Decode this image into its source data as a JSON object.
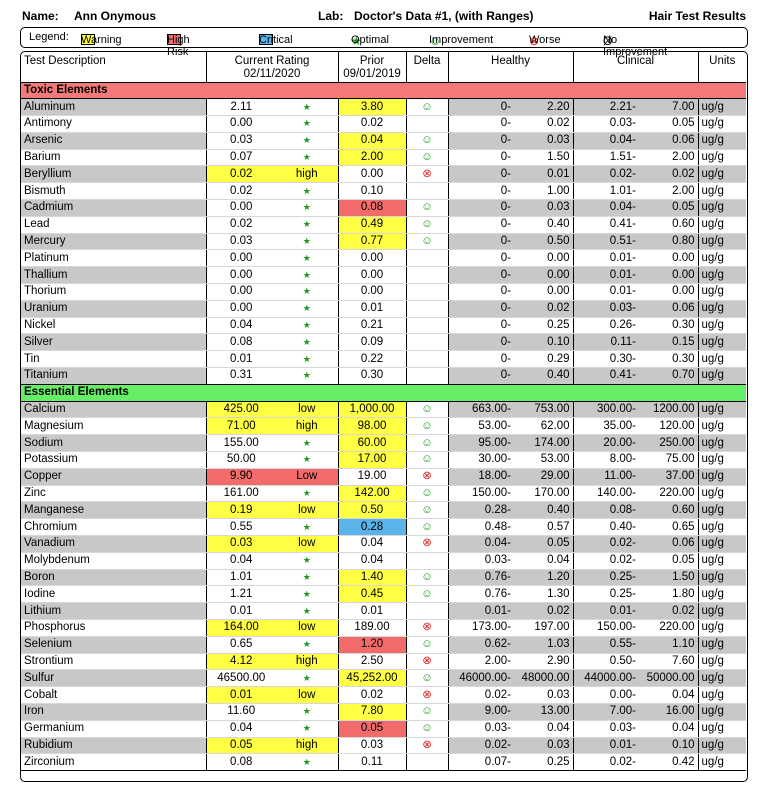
{
  "header": {
    "name_label": "Name:",
    "name": "Ann Onymous",
    "lab_label": "Lab:",
    "lab": "Doctor's Data #1, (with Ranges)",
    "title": "Hair Test Results"
  },
  "legend": {
    "label": "Legend:",
    "items": [
      {
        "label": "Warning",
        "swatch": "#ffff44"
      },
      {
        "label": "High Risk",
        "swatch": "#f26b6b"
      },
      {
        "label": "Critical",
        "swatch": "#5ab4ea"
      },
      {
        "label": "Optimal",
        "symbol": "★",
        "color": "#1a9a1a"
      },
      {
        "label": "Improvement",
        "symbol": "☺",
        "color": "#1a9a1a"
      },
      {
        "label": "Worse",
        "symbol": "⊗",
        "color": "#e02020"
      },
      {
        "label": "No Improvement",
        "symbol": "Ø",
        "color": "#000000"
      }
    ]
  },
  "table": {
    "columns": {
      "description": "Test Description",
      "current": "Current Rating",
      "current_date": "02/11/2020",
      "prior": "Prior",
      "prior_date": "09/01/2019",
      "delta": "Delta",
      "healthy": "Healthy",
      "clinical": "Clinical",
      "units": "Units"
    },
    "sections": [
      {
        "title": "Toxic Elements",
        "color": "#f47a7a",
        "rows": [
          [
            "Aluminum",
            "2.11",
            "★",
            null,
            "3.80",
            "#ffff44",
            "☺",
            "0-",
            "2.20",
            "2.21-",
            "7.00",
            "ug/g"
          ],
          [
            "Antimony",
            "0.00",
            "★",
            null,
            "0.02",
            null,
            null,
            "0-",
            "0.02",
            "0.03-",
            "0.05",
            "ug/g"
          ],
          [
            "Arsenic",
            "0.03",
            "★",
            null,
            "0.04",
            "#ffff44",
            "☺",
            "0-",
            "0.03",
            "0.04-",
            "0.06",
            "ug/g"
          ],
          [
            "Barium",
            "0.07",
            "★",
            null,
            "2.00",
            "#ffff44",
            "☺",
            "0-",
            "1.50",
            "1.51-",
            "2.00",
            "ug/g"
          ],
          [
            "Beryllium",
            "0.02",
            "high",
            "#ffff44",
            "0.00",
            null,
            "⊗",
            "0-",
            "0.01",
            "0.02-",
            "0.02",
            "ug/g"
          ],
          [
            "Bismuth",
            "0.02",
            "★",
            null,
            "0.10",
            null,
            null,
            "0-",
            "1.00",
            "1.01-",
            "2.00",
            "ug/g"
          ],
          [
            "Cadmium",
            "0.00",
            "★",
            null,
            "0.08",
            "#f26b6b",
            "☺",
            "0-",
            "0.03",
            "0.04-",
            "0.05",
            "ug/g"
          ],
          [
            "Lead",
            "0.02",
            "★",
            null,
            "0.49",
            "#ffff44",
            "☺",
            "0-",
            "0.40",
            "0.41-",
            "0.60",
            "ug/g"
          ],
          [
            "Mercury",
            "0.03",
            "★",
            null,
            "0.77",
            "#ffff44",
            "☺",
            "0-",
            "0.50",
            "0.51-",
            "0.80",
            "ug/g"
          ],
          [
            "Platinum",
            "0.00",
            "★",
            null,
            "0.00",
            null,
            null,
            "0-",
            "0.00",
            "0.01-",
            "0.00",
            "ug/g"
          ],
          [
            "Thallium",
            "0.00",
            "★",
            null,
            "0.00",
            null,
            null,
            "0-",
            "0.00",
            "0.01-",
            "0.00",
            "ug/g"
          ],
          [
            "Thorium",
            "0.00",
            "★",
            null,
            "0.00",
            null,
            null,
            "0-",
            "0.00",
            "0.01-",
            "0.00",
            "ug/g"
          ],
          [
            "Uranium",
            "0.00",
            "★",
            null,
            "0.01",
            null,
            null,
            "0-",
            "0.02",
            "0.03-",
            "0.06",
            "ug/g"
          ],
          [
            "Nickel",
            "0.04",
            "★",
            null,
            "0.21",
            null,
            null,
            "0-",
            "0.25",
            "0.26-",
            "0.30",
            "ug/g"
          ],
          [
            "Silver",
            "0.08",
            "★",
            null,
            "0.09",
            null,
            null,
            "0-",
            "0.10",
            "0.11-",
            "0.15",
            "ug/g"
          ],
          [
            "Tin",
            "0.01",
            "★",
            null,
            "0.22",
            null,
            null,
            "0-",
            "0.29",
            "0.30-",
            "0.30",
            "ug/g"
          ],
          [
            "Titanium",
            "0.31",
            "★",
            null,
            "0.30",
            null,
            null,
            "0-",
            "0.40",
            "0.41-",
            "0.70",
            "ug/g"
          ]
        ]
      },
      {
        "title": "Essential Elements",
        "color": "#66ee66",
        "rows": [
          [
            "Calcium",
            "425.00",
            "low",
            "#ffff44",
            "1,000.00",
            "#ffff44",
            "☺",
            "663.00-",
            "753.00",
            "300.00-",
            "1200.00",
            "ug/g"
          ],
          [
            "Magnesium",
            "71.00",
            "high",
            "#ffff44",
            "98.00",
            "#ffff44",
            "☺",
            "53.00-",
            "62.00",
            "35.00-",
            "120.00",
            "ug/g"
          ],
          [
            "Sodium",
            "155.00",
            "★",
            null,
            "60.00",
            "#ffff44",
            "☺",
            "95.00-",
            "174.00",
            "20.00-",
            "250.00",
            "ug/g"
          ],
          [
            "Potassium",
            "50.00",
            "★",
            null,
            "17.00",
            "#ffff44",
            "☺",
            "30.00-",
            "53.00",
            "8.00-",
            "75.00",
            "ug/g"
          ],
          [
            "Copper",
            "9.90",
            "Low",
            "#f26b6b",
            "19.00",
            null,
            "⊗",
            "18.00-",
            "29.00",
            "11.00-",
            "37.00",
            "ug/g"
          ],
          [
            "Zinc",
            "161.00",
            "★",
            null,
            "142.00",
            "#ffff44",
            "☺",
            "150.00-",
            "170.00",
            "140.00-",
            "220.00",
            "ug/g"
          ],
          [
            "Manganese",
            "0.19",
            "low",
            "#ffff44",
            "0.50",
            "#ffff44",
            "☺",
            "0.28-",
            "0.40",
            "0.08-",
            "0.60",
            "ug/g"
          ],
          [
            "Chromium",
            "0.55",
            "★",
            null,
            "0.28",
            "#5ab4ea",
            "☺",
            "0.48-",
            "0.57",
            "0.40-",
            "0.65",
            "ug/g"
          ],
          [
            "Vanadium",
            "0.03",
            "low",
            "#ffff44",
            "0.04",
            null,
            "⊗",
            "0.04-",
            "0.05",
            "0.02-",
            "0.06",
            "ug/g"
          ],
          [
            "Molybdenum",
            "0.04",
            "★",
            null,
            "0.04",
            null,
            null,
            "0.03-",
            "0.04",
            "0.02-",
            "0.05",
            "ug/g"
          ],
          [
            "Boron",
            "1.01",
            "★",
            null,
            "1.40",
            "#ffff44",
            "☺",
            "0.76-",
            "1.20",
            "0.25-",
            "1.50",
            "ug/g"
          ],
          [
            "Iodine",
            "1.21",
            "★",
            null,
            "0.45",
            "#ffff44",
            "☺",
            "0.76-",
            "1.30",
            "0.25-",
            "1.80",
            "ug/g"
          ],
          [
            "Lithium",
            "0.01",
            "★",
            null,
            "0.01",
            null,
            null,
            "0.01-",
            "0.02",
            "0.01-",
            "0.02",
            "ug/g"
          ],
          [
            "Phosphorus",
            "164.00",
            "low",
            "#ffff44",
            "189.00",
            null,
            "⊗",
            "173.00-",
            "197.00",
            "150.00-",
            "220.00",
            "ug/g"
          ],
          [
            "Selenium",
            "0.65",
            "★",
            null,
            "1.20",
            "#f26b6b",
            "☺",
            "0.62-",
            "1.03",
            "0.55-",
            "1.10",
            "ug/g"
          ],
          [
            "Strontium",
            "4.12",
            "high",
            "#ffff44",
            "2.50",
            null,
            "⊗",
            "2.00-",
            "2.90",
            "0.50-",
            "7.60",
            "ug/g"
          ],
          [
            "Sulfur",
            "46500.00",
            "★",
            null,
            "45,252.00",
            "#ffff44",
            "☺",
            "46000.00-",
            "48000.00",
            "44000.00-",
            "50000.00",
            "ug/g"
          ],
          [
            "Cobalt",
            "0.01",
            "low",
            "#ffff44",
            "0.02",
            null,
            "⊗",
            "0.02-",
            "0.03",
            "0.00-",
            "0.04",
            "ug/g"
          ],
          [
            "Iron",
            "11.60",
            "★",
            null,
            "7.80",
            "#ffff44",
            "☺",
            "9.00-",
            "13.00",
            "7.00-",
            "16.00",
            "ug/g"
          ],
          [
            "Germanium",
            "0.04",
            "★",
            null,
            "0.05",
            "#f26b6b",
            "☺",
            "0.03-",
            "0.04",
            "0.03-",
            "0.04",
            "ug/g"
          ],
          [
            "Rubidium",
            "0.05",
            "high",
            "#ffff44",
            "0.03",
            null,
            "⊗",
            "0.02-",
            "0.03",
            "0.01-",
            "0.10",
            "ug/g"
          ],
          [
            "Zirconium",
            "0.08",
            "★",
            null,
            "0.11",
            null,
            null,
            "0.07-",
            "0.25",
            "0.02-",
            "0.42",
            "ug/g"
          ]
        ]
      }
    ]
  }
}
